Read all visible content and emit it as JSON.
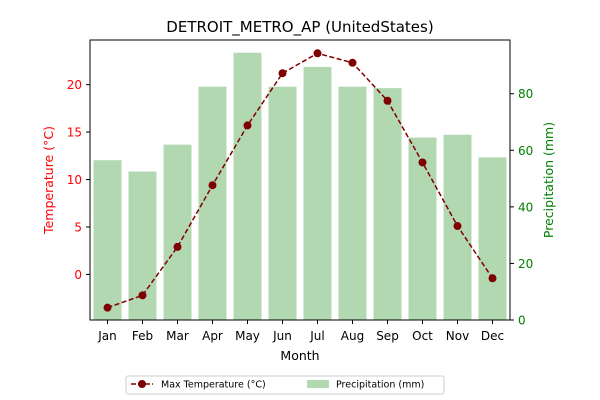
{
  "chart_data": {
    "type": "bar+line",
    "title": "DETROIT_METRO_AP (UnitedStates)",
    "xlabel": "Month",
    "ylabel_left": "Temperature (°C)",
    "ylabel_right": "Precipitation (mm)",
    "categories": [
      "Jan",
      "Feb",
      "Mar",
      "Apr",
      "May",
      "Jun",
      "Jul",
      "Aug",
      "Sep",
      "Oct",
      "Nov",
      "Dec"
    ],
    "series": [
      {
        "name": "Max Temperature (°C)",
        "type": "line",
        "axis": "left",
        "values": [
          -3.5,
          -2.2,
          2.9,
          9.4,
          15.7,
          21.2,
          23.3,
          22.3,
          18.3,
          11.8,
          5.1,
          -0.4
        ]
      },
      {
        "name": "Precipitation (mm)",
        "type": "bar",
        "axis": "right",
        "values": [
          56.5,
          52.5,
          62.0,
          82.5,
          94.5,
          82.5,
          89.5,
          82.5,
          82.0,
          64.5,
          65.5,
          57.5
        ]
      }
    ],
    "ylim_left": [
      -4.8,
      24.7
    ],
    "yticks_left": [
      "0",
      "5",
      "10",
      "15",
      "20"
    ],
    "ylim_right": [
      0,
      99
    ],
    "yticks_right": [
      "0",
      "20",
      "40",
      "60",
      "80"
    ],
    "legend_location": "bottom-center",
    "grid": false,
    "colors": {
      "line": "#7f0000",
      "bar": "#b2d8b2",
      "left_axis": "#ff0000",
      "right_axis": "#008000"
    }
  }
}
